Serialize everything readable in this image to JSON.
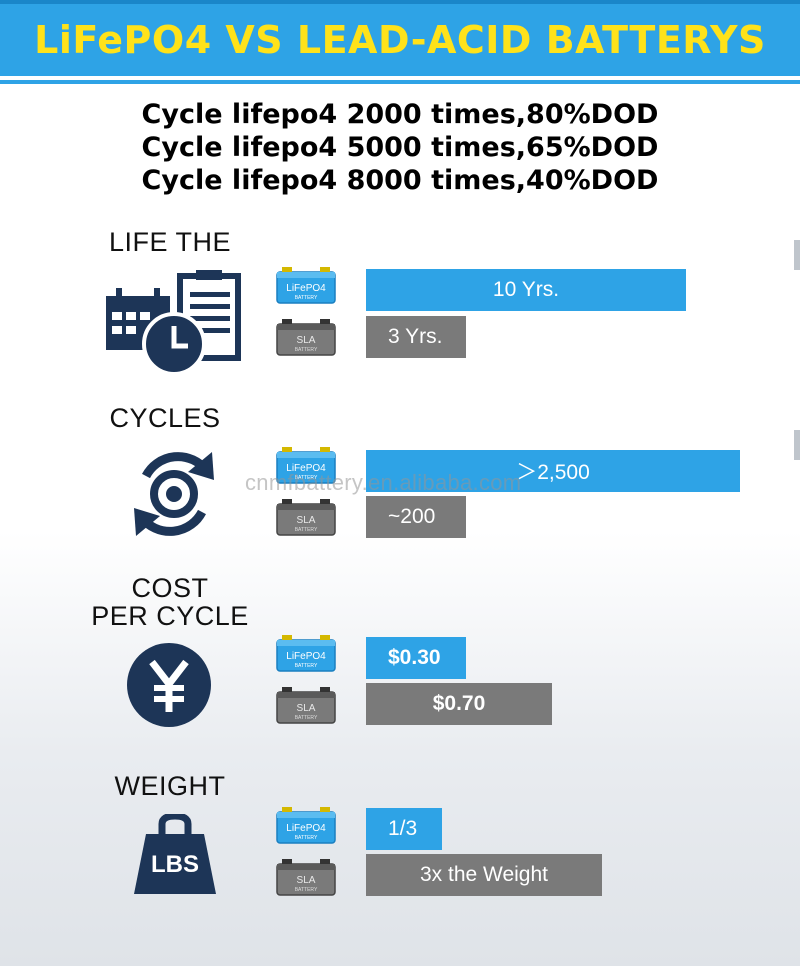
{
  "header": {
    "title": "LiFePO4 VS LEAD-ACID BATTERYS",
    "cycle_lines": [
      "Cycle lifepo4 2000 times,80%DOD",
      "Cycle lifepo4 5000 times,65%DOD",
      "Cycle lifepo4 8000 times,40%DOD"
    ]
  },
  "chart_data": {
    "type": "bar",
    "orientation": "horizontal",
    "battery_labels": {
      "lifepo4": "LiFePO4",
      "sla": "SLA",
      "sla_sub": "BATTERY",
      "lfp_sub": "BATTERY"
    },
    "sections": [
      {
        "title": "LIFE THE",
        "icon": "calendar-clipboard-clock-icon",
        "lifepo4": {
          "label": "10 Yrs.",
          "value": 10
        },
        "sla": {
          "label": "3 Yrs.",
          "value": 3
        }
      },
      {
        "title": "CYCLES",
        "icon": "cycle-arrows-icon",
        "lifepo4": {
          "label": "＞2,500",
          "value": 2500
        },
        "sla": {
          "label": "~200",
          "value": 200
        }
      },
      {
        "title": "COST\nPER CYCLE",
        "title_lines": [
          "COST",
          "PER CYCLE"
        ],
        "icon": "yen-coin-icon",
        "lifepo4": {
          "label": "$0.30",
          "value": 0.3
        },
        "sla": {
          "label": "$0.70",
          "value": 0.7
        }
      },
      {
        "title": "WEIGHT",
        "icon": "weight-lbs-icon",
        "icon_text": "LBS",
        "lifepo4": {
          "label": "1/3",
          "value": 0.333
        },
        "sla": {
          "label": "3x the Weight",
          "value": 1
        }
      }
    ]
  },
  "colors": {
    "lifepo4": "#2ea3e6",
    "sla": "#7a7a7a",
    "title": "#ffe21a",
    "icon": "#1d3557"
  },
  "watermark": "cnmfbattery.en.alibaba.com"
}
